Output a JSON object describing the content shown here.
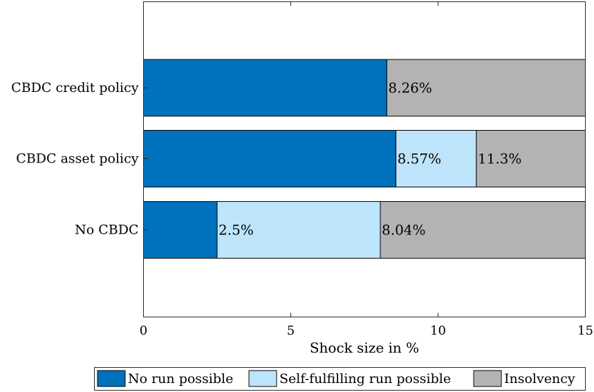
{
  "chart_data": {
    "type": "bar",
    "orientation": "horizontal",
    "stacked": true,
    "categories": [
      "CBDC credit policy",
      "CBDC asset policy",
      "No CBDC"
    ],
    "series": [
      {
        "name": "No run possible",
        "color": "#0072BD",
        "values": [
          8.26,
          8.57,
          2.5
        ]
      },
      {
        "name": "Self-fulfilling run possible",
        "color": "#BDE4FA",
        "values": [
          0,
          2.73,
          5.54
        ]
      },
      {
        "name": "Insolvency",
        "color": "#B3B3B3",
        "values": [
          6.74,
          3.7,
          6.96
        ]
      }
    ],
    "data_labels": [
      {
        "category": "CBDC credit policy",
        "x": 8.26,
        "text": "8.26%"
      },
      {
        "category": "CBDC asset policy",
        "x": 8.57,
        "text": "8.57%"
      },
      {
        "category": "CBDC asset policy",
        "x": 11.3,
        "text": "11.3%"
      },
      {
        "category": "No CBDC",
        "x": 2.5,
        "text": "2.5%"
      },
      {
        "category": "No CBDC",
        "x": 8.04,
        "text": "8.04%"
      }
    ],
    "title": "",
    "xlabel": "Shock size in %",
    "ylabel": "",
    "xlim": [
      0,
      15
    ],
    "xticks": [
      0,
      5,
      10,
      15
    ],
    "grid": false,
    "legend_placement": "bottom"
  }
}
